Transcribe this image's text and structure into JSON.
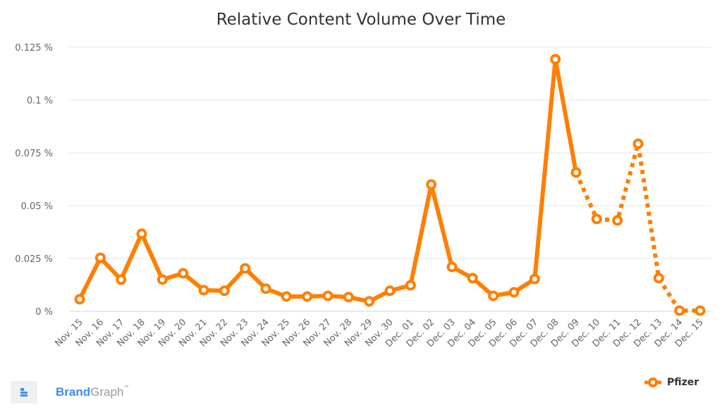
{
  "chart_data": {
    "type": "line",
    "title": "Relative Content Volume Over Time",
    "xlabel": "",
    "ylabel": "",
    "ylim": [
      0,
      0.125
    ],
    "y_ticks": [
      "0 %",
      "0.025 %",
      "0.05 %",
      "0.075 %",
      "0.1 %",
      "0.125 %"
    ],
    "y_tick_values": [
      0,
      0.025,
      0.05,
      0.075,
      0.1,
      0.125
    ],
    "grid": true,
    "legend_position": "bottom-right",
    "categories": [
      "Nov. 15",
      "Nov. 16",
      "Nov. 17",
      "Nov. 18",
      "Nov. 19",
      "Nov. 20",
      "Nov. 21",
      "Nov. 22",
      "Nov. 23",
      "Nov. 24",
      "Nov. 25",
      "Nov. 26",
      "Nov. 27",
      "Nov. 28",
      "Nov. 29",
      "Nov. 30",
      "Dec. 01",
      "Dec. 02",
      "Dec. 03",
      "Dec. 04",
      "Dec. 05",
      "Dec. 06",
      "Dec. 07",
      "Dec. 08",
      "Dec. 09",
      "Dec. 10",
      "Dec. 11",
      "Dec. 12",
      "Dec. 13",
      "Dec. 14",
      "Dec. 15"
    ],
    "series": [
      {
        "name": "Pfizer",
        "color": "#ff7f00",
        "values": [
          0.0057,
          0.0253,
          0.015,
          0.0367,
          0.015,
          0.018,
          0.01,
          0.0097,
          0.0203,
          0.0107,
          0.007,
          0.007,
          0.0073,
          0.0067,
          0.0047,
          0.0097,
          0.0123,
          0.06,
          0.021,
          0.0157,
          0.0073,
          0.009,
          0.0153,
          0.1193,
          0.0657,
          0.0437,
          0.043,
          0.0793,
          0.0157,
          0.0003,
          0.0003
        ],
        "dashed_from_index": 24
      }
    ]
  },
  "branding": {
    "brand_bold": "Brand",
    "brand_light": "Graph",
    "trademark": "™"
  },
  "legend": {
    "label": "Pfizer"
  }
}
